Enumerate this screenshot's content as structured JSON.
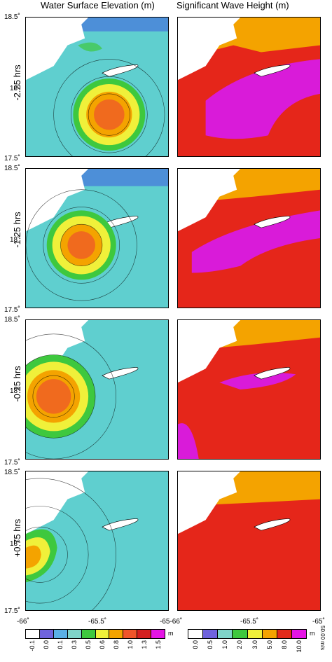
{
  "titles": {
    "left": "Water Surface Elevation (m)",
    "right": "Significant Wave Height (m)"
  },
  "rows": [
    {
      "label": "-2.25 hrs"
    },
    {
      "label": "-1.25 hrs"
    },
    {
      "label": "-0.25 hrs"
    },
    {
      "label": "+0.75 hrs"
    }
  ],
  "lat_ticks": {
    "top": "18.5˚",
    "mid": "18˚",
    "bottom": "17.5˚"
  },
  "lon_ticks": {
    "left_a": "-66˚",
    "mid_a": "-65.5˚",
    "end_a": "-65-66˚",
    "mid_b": "-65.5˚",
    "end_b": "-65˚"
  },
  "colorbar_left": {
    "unit": "m",
    "labels": [
      "-0.1",
      "0.0",
      "0.1",
      "0.3",
      "0.5",
      "0.6",
      "0.8",
      "1.0",
      "1.3",
      "1.5"
    ],
    "colors": [
      "#ffffff",
      "#6f63dd",
      "#5ab0e6",
      "#7fd4c9",
      "#3ec83e",
      "#f0f03a",
      "#f4a300",
      "#f0552a",
      "#d42020",
      "#e515e5"
    ]
  },
  "colorbar_right": {
    "unit": "m",
    "labels": [
      "0.0",
      "0.5",
      "1.0",
      "2.0",
      "3.0",
      "5.0",
      "8.0",
      "10.0"
    ],
    "colors": [
      "#ffffff",
      "#6f63dd",
      "#7fd4c9",
      "#3ec83e",
      "#f0f03a",
      "#f4a300",
      "#e22a1a",
      "#e515e5"
    ]
  },
  "vector_scale": "50.00 m/s",
  "colors": {
    "land": "#ffffff",
    "sea_wse": "#5fcfcf",
    "sea_swh": "#e5261a",
    "eye_wse": "#f06a1e",
    "swh_high": "#d91bd9"
  }
}
